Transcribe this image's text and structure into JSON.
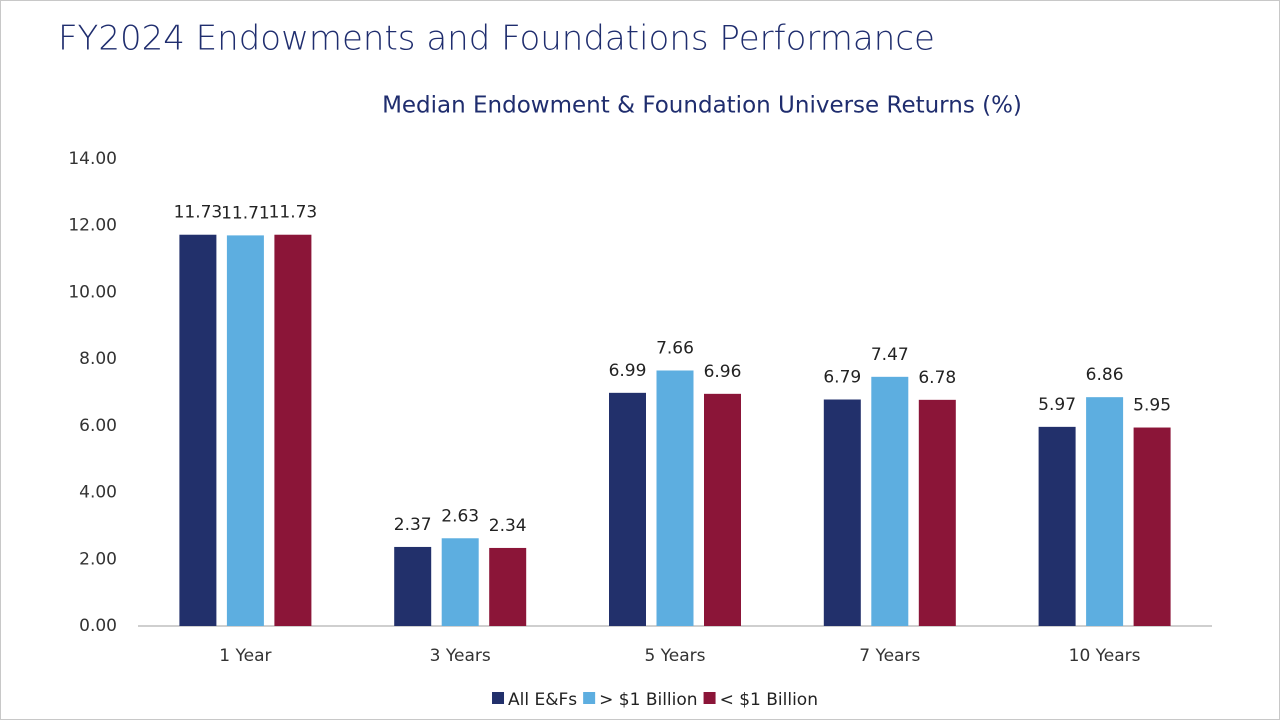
{
  "slide_title": "FY2024 Endowments and Foundations Performance",
  "chart_data": {
    "type": "bar",
    "title": "Median Endowment & Foundation Universe Returns (%)",
    "categories": [
      "1 Year",
      "3 Years",
      "5 Years",
      "7 Years",
      "10 Years"
    ],
    "series": [
      {
        "name": "All E&Fs",
        "color": "#22306b",
        "values": [
          11.73,
          2.37,
          6.99,
          6.79,
          5.97
        ]
      },
      {
        "name": "> $1 Billion",
        "color": "#5daee0",
        "values": [
          11.71,
          2.63,
          7.66,
          7.47,
          6.86
        ]
      },
      {
        "name": "< $1 Billion",
        "color": "#8b1538",
        "values": [
          11.73,
          2.34,
          6.96,
          6.78,
          5.95
        ]
      }
    ],
    "ylim": [
      0,
      14
    ],
    "yticks": [
      {
        "value": 0,
        "label": "0.00"
      },
      {
        "value": 2,
        "label": "2.00"
      },
      {
        "value": 4,
        "label": "4.00"
      },
      {
        "value": 6,
        "label": "6.00"
      },
      {
        "value": 8,
        "label": "8.00"
      },
      {
        "value": 10,
        "label": "10.00"
      },
      {
        "value": 12,
        "label": "12.00"
      },
      {
        "value": 14,
        "label": "14.00"
      }
    ],
    "legend": "bottom"
  }
}
